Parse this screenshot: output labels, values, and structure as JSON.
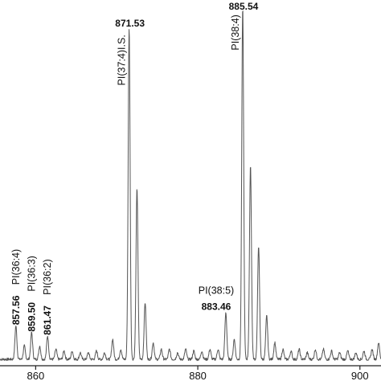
{
  "chart_data": {
    "type": "line",
    "title": "",
    "xlabel": "",
    "ylabel": "",
    "xlim": [
      855.6,
      902.6
    ],
    "ylim": [
      0,
      100
    ],
    "grid": false,
    "x_ticks": [
      {
        "value": 860,
        "label": "860"
      },
      {
        "value": 880,
        "label": "880"
      },
      {
        "value": 900,
        "label": "900"
      }
    ],
    "colors": {
      "line": "#555555",
      "axis": "#222222",
      "text": "#111111"
    },
    "peaks": [
      {
        "mz": 857.56,
        "intensity": 10,
        "label": "857.56",
        "annotation": "PI(36:4)"
      },
      {
        "mz": 858.6,
        "intensity": 4
      },
      {
        "mz": 859.5,
        "intensity": 8,
        "label": "859.50",
        "annotation": "PI(36:3)"
      },
      {
        "mz": 860.5,
        "intensity": 4
      },
      {
        "mz": 861.47,
        "intensity": 7,
        "label": "861.47",
        "annotation": "PI(36:2)"
      },
      {
        "mz": 862.5,
        "intensity": 3
      },
      {
        "mz": 863.5,
        "intensity": 2.5
      },
      {
        "mz": 864.5,
        "intensity": 2.5
      },
      {
        "mz": 865.5,
        "intensity": 2
      },
      {
        "mz": 866.5,
        "intensity": 2
      },
      {
        "mz": 867.5,
        "intensity": 2.5
      },
      {
        "mz": 868.5,
        "intensity": 2
      },
      {
        "mz": 869.5,
        "intensity": 6
      },
      {
        "mz": 870.5,
        "intensity": 3
      },
      {
        "mz": 871.53,
        "intensity": 99,
        "label": "871.53",
        "annotation": "PI(37:4)I.S."
      },
      {
        "mz": 872.5,
        "intensity": 51
      },
      {
        "mz": 873.5,
        "intensity": 17
      },
      {
        "mz": 874.5,
        "intensity": 5
      },
      {
        "mz": 875.5,
        "intensity": 3
      },
      {
        "mz": 876.5,
        "intensity": 3
      },
      {
        "mz": 877.5,
        "intensity": 2
      },
      {
        "mz": 878.5,
        "intensity": 3
      },
      {
        "mz": 879.5,
        "intensity": 2.5
      },
      {
        "mz": 880.5,
        "intensity": 2.5
      },
      {
        "mz": 881.5,
        "intensity": 3
      },
      {
        "mz": 882.5,
        "intensity": 3
      },
      {
        "mz": 883.46,
        "intensity": 14,
        "label": "883.46",
        "annotation": "PI(38:5)"
      },
      {
        "mz": 884.5,
        "intensity": 6
      },
      {
        "mz": 885.54,
        "intensity": 105,
        "label": "885.54",
        "annotation": "PI(38:4)"
      },
      {
        "mz": 886.5,
        "intensity": 58
      },
      {
        "mz": 887.5,
        "intensity": 34
      },
      {
        "mz": 888.5,
        "intensity": 13
      },
      {
        "mz": 889.5,
        "intensity": 5
      },
      {
        "mz": 890.5,
        "intensity": 3
      },
      {
        "mz": 891.5,
        "intensity": 2.5
      },
      {
        "mz": 892.5,
        "intensity": 3
      },
      {
        "mz": 893.5,
        "intensity": 2
      },
      {
        "mz": 894.5,
        "intensity": 3
      },
      {
        "mz": 895.5,
        "intensity": 3
      },
      {
        "mz": 896.5,
        "intensity": 2.5
      },
      {
        "mz": 897.5,
        "intensity": 2
      },
      {
        "mz": 898.5,
        "intensity": 2.5
      },
      {
        "mz": 899.5,
        "intensity": 2
      },
      {
        "mz": 900.5,
        "intensity": 2.5
      },
      {
        "mz": 901.5,
        "intensity": 3
      },
      {
        "mz": 902.3,
        "intensity": 5
      }
    ]
  }
}
